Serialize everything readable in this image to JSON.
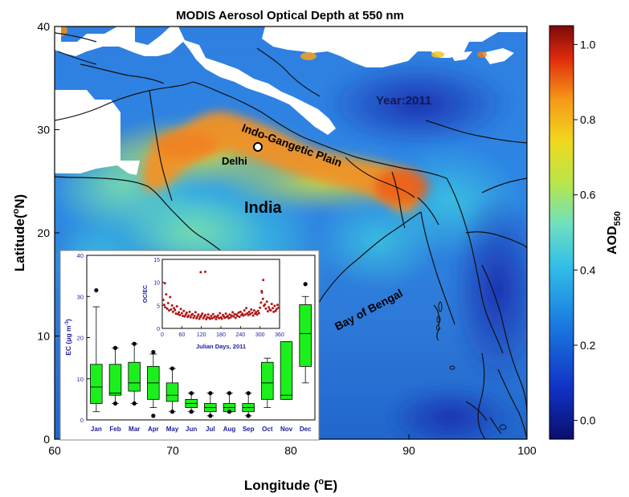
{
  "figure": {
    "title": "MODIS Aerosol Optical Depth at 550 nm",
    "xlabel_main": "Longitude (",
    "xlabel_sup": "o",
    "xlabel_end": "E)",
    "ylabel_main": "Latitude(",
    "ylabel_sup": "o",
    "ylabel_end": "N)"
  },
  "map": {
    "x_ticks": [
      "60",
      "70",
      "80",
      "90",
      "100"
    ],
    "y_ticks": [
      "0",
      "10",
      "20",
      "30",
      "40"
    ],
    "year_label": "Year:2011",
    "region_label": "Indo-Gangetic Plain",
    "city_label": "Delhi",
    "country_label": "India",
    "sea_label": "Bay of Bengal"
  },
  "colorbar": {
    "ticks": [
      "0.0",
      "0.2",
      "0.4",
      "0.6",
      "0.8",
      "1.0"
    ],
    "label_main": "AOD",
    "label_sub": "550",
    "range": [
      -0.05,
      1.05
    ],
    "colors": {
      "low": "#0b1f8f",
      "mid_low": "#1a7be0",
      "mid": "#4fd1d9",
      "mid_high": "#a6e04a",
      "high": "#f6a21c",
      "top": "#7a0a0a"
    }
  },
  "chart_data": [
    {
      "type": "box",
      "title": "",
      "ylabel": "EC (μg m⁻³)",
      "ylabel_main": "EC (μg m",
      "ylabel_sup": "-3",
      "ylabel_end": ")",
      "ylim": [
        0,
        40
      ],
      "yticks": [
        "0",
        "10",
        "20",
        "30",
        "40"
      ],
      "categories": [
        "Jan",
        "Feb",
        "Mar",
        "Apr",
        "May",
        "Jun",
        "Jul",
        "Aug",
        "Sep",
        "Oct",
        "Nov",
        "Dec"
      ],
      "boxes": [
        {
          "min": 2,
          "q1": 4,
          "median": 8,
          "q3": 13.5,
          "max": 27.5,
          "outliers": [
            31.5
          ]
        },
        {
          "min": 4,
          "q1": 6,
          "median": 6.5,
          "q3": 13.5,
          "max": 17.5,
          "outliers": [
            4,
            17.5
          ]
        },
        {
          "min": 4,
          "q1": 7,
          "median": 9,
          "q3": 14,
          "max": 18.5,
          "outliers": [
            4,
            18.5
          ]
        },
        {
          "min": 3,
          "q1": 5,
          "median": 9,
          "q3": 13,
          "max": 16,
          "outliers": [
            1,
            16.5
          ]
        },
        {
          "min": 2,
          "q1": 4.5,
          "median": 6,
          "q3": 9,
          "max": 12.5,
          "outliers": [
            2,
            12.5
          ]
        },
        {
          "min": 2,
          "q1": 3,
          "median": 4,
          "q3": 5,
          "max": 6.5,
          "outliers": [
            2,
            6.5
          ]
        },
        {
          "min": 1,
          "q1": 2,
          "median": 3,
          "q3": 4,
          "max": 6.5,
          "outliers": [
            1,
            6.5
          ]
        },
        {
          "min": 2,
          "q1": 2,
          "median": 3,
          "q3": 4,
          "max": 6.5,
          "outliers": [
            2,
            6.5
          ]
        },
        {
          "min": 1,
          "q1": 2,
          "median": 3,
          "q3": 4,
          "max": 6.5,
          "outliers": [
            1,
            6.5
          ]
        },
        {
          "min": 3,
          "q1": 5,
          "median": 9,
          "q3": 14,
          "max": 15,
          "outliers": []
        },
        {
          "min": 5,
          "q1": 5,
          "median": 6,
          "q3": 19,
          "max": 19,
          "outliers": []
        },
        {
          "min": 9,
          "q1": 13,
          "median": 21,
          "q3": 28,
          "max": 30,
          "outliers": [
            33
          ]
        }
      ]
    },
    {
      "type": "scatter",
      "ylabel": "OC/EC",
      "xlabel": "Julian Days, 2011",
      "xlim": [
        0,
        360
      ],
      "ylim": [
        0,
        15
      ],
      "xticks": [
        "0",
        "60",
        "120",
        "180",
        "240",
        "300",
        "360"
      ],
      "yticks": [
        "0",
        "5",
        "10",
        "15"
      ],
      "x": [
        3,
        6,
        9,
        12,
        15,
        18,
        21,
        24,
        27,
        30,
        33,
        36,
        39,
        42,
        45,
        48,
        51,
        54,
        57,
        60,
        63,
        66,
        69,
        72,
        75,
        78,
        81,
        84,
        87,
        90,
        93,
        96,
        99,
        102,
        105,
        108,
        111,
        114,
        117,
        120,
        123,
        126,
        129,
        132,
        135,
        138,
        141,
        144,
        147,
        150,
        153,
        156,
        159,
        162,
        165,
        168,
        171,
        174,
        177,
        180,
        183,
        186,
        189,
        192,
        195,
        198,
        201,
        204,
        207,
        210,
        213,
        216,
        219,
        222,
        225,
        228,
        231,
        234,
        237,
        240,
        243,
        246,
        249,
        252,
        255,
        258,
        261,
        264,
        267,
        270,
        273,
        276,
        279,
        282,
        285,
        288,
        291,
        294,
        297,
        300,
        303,
        306,
        309,
        312,
        315,
        318,
        321,
        324,
        327,
        330,
        333,
        336,
        339,
        342,
        345,
        348,
        351,
        354,
        357,
        8,
        118,
        132,
        305,
        310
      ],
      "y": [
        6.2,
        5.1,
        4.6,
        7.4,
        4.3,
        5.5,
        3.9,
        6.8,
        4.1,
        5.0,
        3.6,
        4.4,
        4.0,
        3.2,
        4.8,
        3.1,
        3.5,
        2.9,
        4.2,
        3.3,
        2.7,
        3.8,
        2.6,
        3.0,
        3.4,
        2.5,
        2.8,
        3.6,
        2.4,
        2.9,
        3.1,
        2.3,
        2.7,
        3.5,
        2.2,
        2.6,
        3.0,
        2.1,
        2.5,
        2.8,
        3.2,
        2.2,
        2.6,
        2.9,
        2.0,
        2.4,
        3.0,
        2.3,
        2.1,
        2.7,
        2.2,
        3.1,
        2.4,
        2.6,
        2.0,
        2.5,
        2.8,
        2.2,
        3.3,
        2.4,
        2.1,
        2.9,
        2.6,
        2.3,
        3.2,
        2.5,
        2.7,
        2.2,
        3.0,
        2.4,
        2.8,
        3.5,
        2.6,
        3.1,
        2.3,
        3.0,
        2.7,
        3.4,
        2.5,
        3.6,
        2.9,
        3.2,
        2.8,
        3.9,
        3.0,
        4.4,
        3.3,
        2.9,
        3.6,
        3.1,
        4.1,
        3.4,
        2.8,
        3.9,
        3.2,
        3.5,
        3.0,
        3.8,
        3.3,
        4.5,
        5.6,
        7.8,
        6.4,
        4.9,
        5.2,
        4.3,
        5.8,
        3.7,
        4.6,
        4.1,
        3.9,
        5.3,
        4.4,
        3.6,
        4.9,
        3.8,
        4.2,
        5.1,
        4.5,
        9.8,
        12.2,
        12.3,
        8.1,
        10.5
      ]
    }
  ]
}
